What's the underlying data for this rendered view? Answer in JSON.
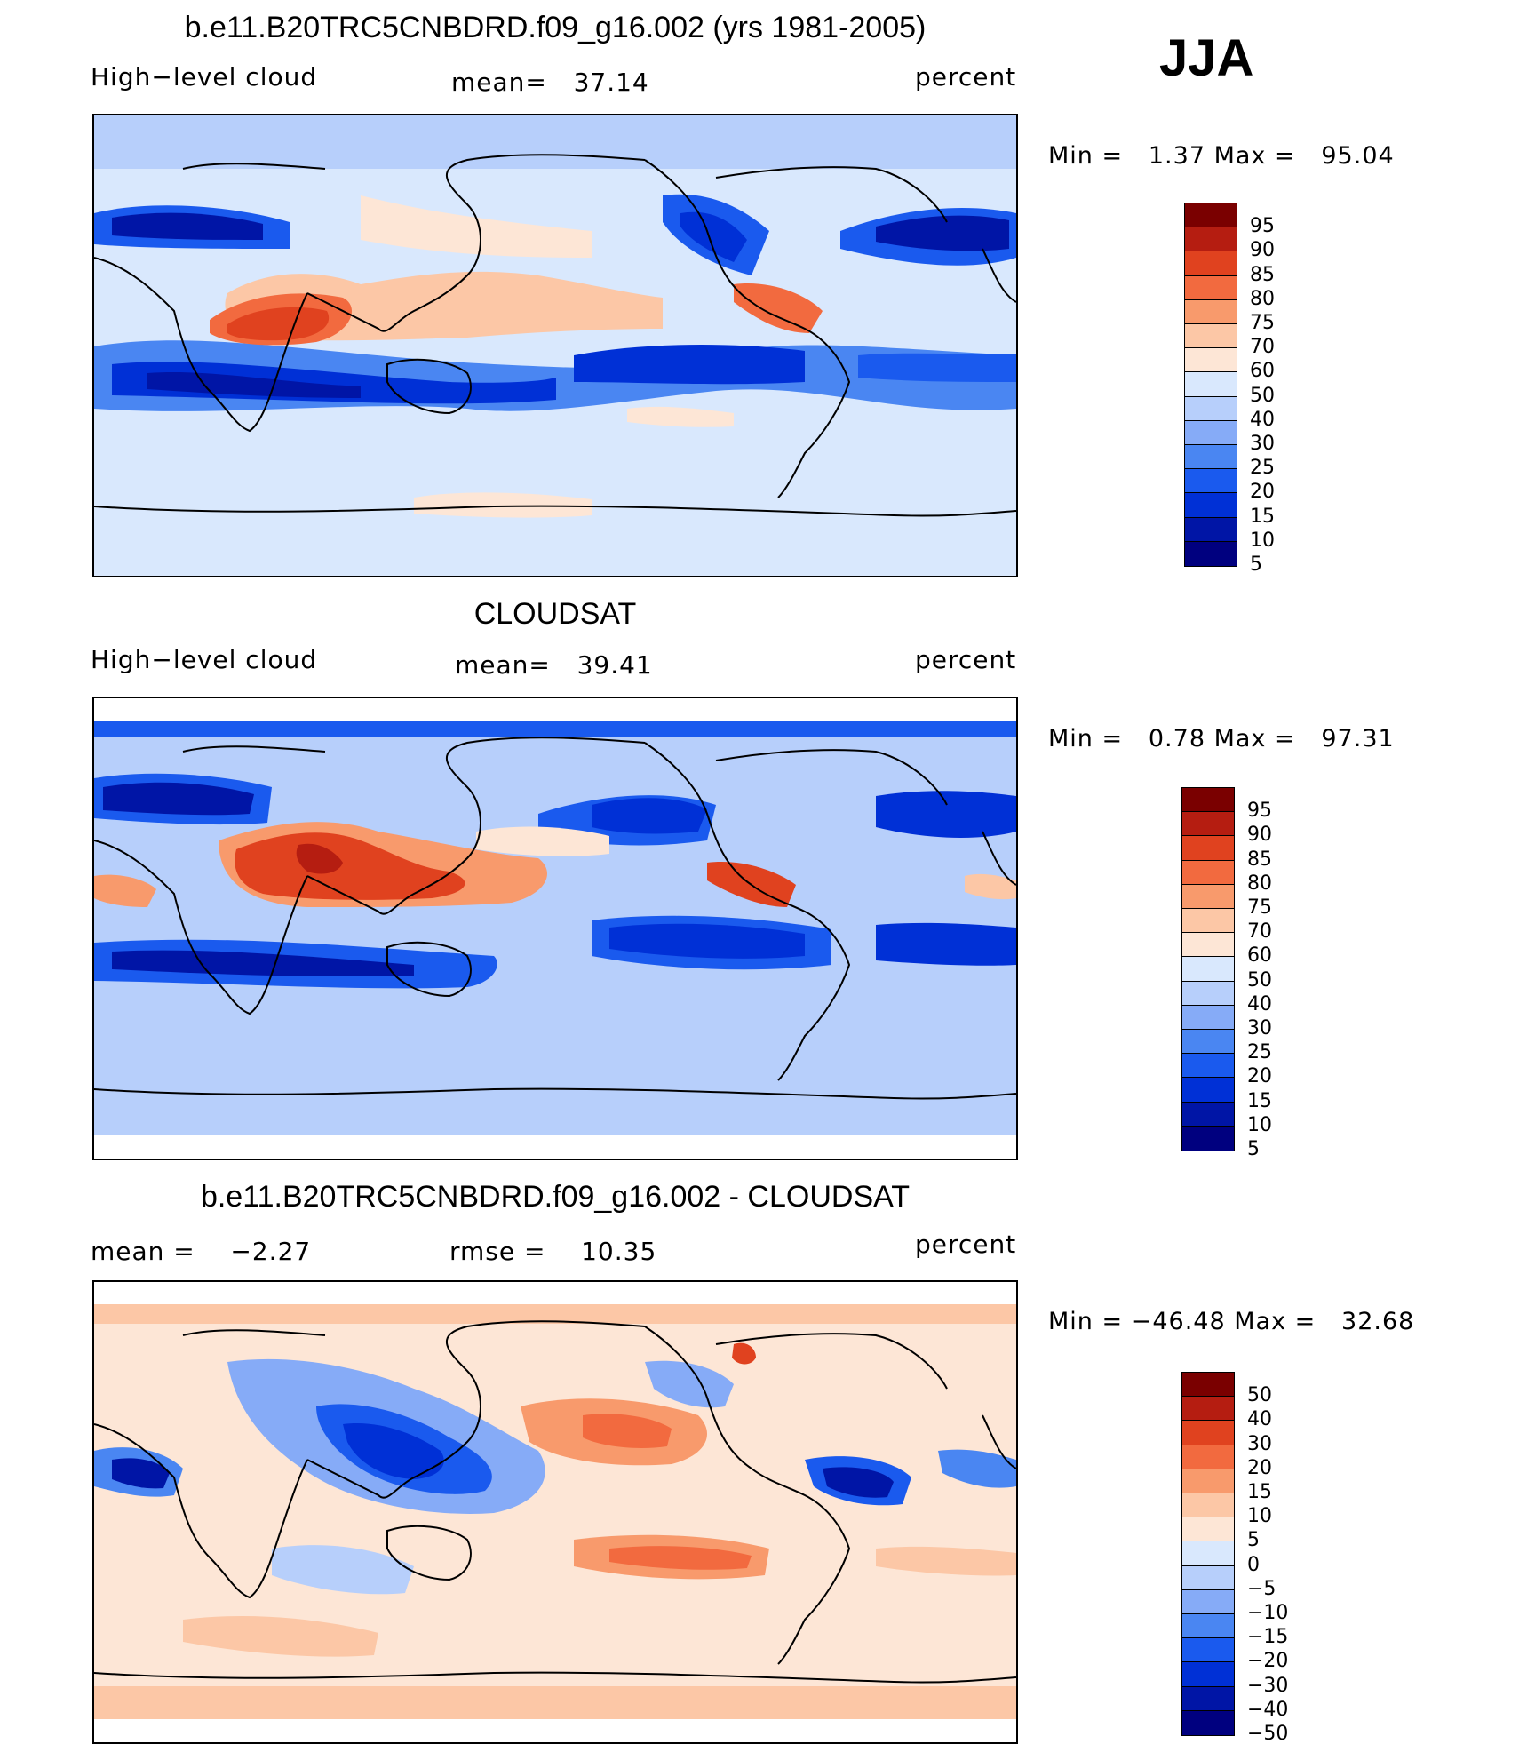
{
  "season": "JJA",
  "colors": {
    "abs_scale": [
      "#00007f",
      "#0015a6",
      "#0030d6",
      "#1a5aee",
      "#4a86f2",
      "#86abf7",
      "#b7cffb",
      "#d9e8fd",
      "#fde6d6",
      "#fcc7a6",
      "#f89a6c",
      "#f26a3f",
      "#e0421f",
      "#b51d11",
      "#7a0000"
    ],
    "diff_scale": [
      "#00007f",
      "#0015a6",
      "#0030d6",
      "#1a5aee",
      "#4a86f2",
      "#86abf7",
      "#b7cffb",
      "#d9e8fd",
      "#fde6d6",
      "#fcc7a6",
      "#f89a6c",
      "#f26a3f",
      "#e0421f",
      "#b51d11",
      "#7a0000"
    ]
  },
  "panels": [
    {
      "title": "b.e11.B20TRC5CNBDRD.f09_g16.002 (yrs 1981-2005)",
      "left_label": "High−level cloud",
      "mid_label": "mean=",
      "mid_value": "37.14",
      "right_label": "percent",
      "min_label": "Min =",
      "min_value": "1.37",
      "max_label": "Max =",
      "max_value": "95.04",
      "legend": [
        "95",
        "90",
        "85",
        "80",
        "75",
        "70",
        "60",
        "50",
        "40",
        "30",
        "25",
        "20",
        "15",
        "10",
        "5"
      ]
    },
    {
      "title": "CLOUDSAT",
      "left_label": "High−level cloud",
      "mid_label": "mean=",
      "mid_value": "39.41",
      "right_label": "percent",
      "min_label": "Min =",
      "min_value": "0.78",
      "max_label": "Max =",
      "max_value": "97.31",
      "legend": [
        "95",
        "90",
        "85",
        "80",
        "75",
        "70",
        "60",
        "50",
        "40",
        "30",
        "25",
        "20",
        "15",
        "10",
        "5"
      ]
    },
    {
      "title": "b.e11.B20TRC5CNBDRD.f09_g16.002 - CLOUDSAT",
      "left_label": "mean =",
      "left_value": "−2.27",
      "mid_label": "rmse =",
      "mid_value": "10.35",
      "right_label": "percent",
      "min_label": "Min =",
      "min_value": "−46.48",
      "max_label": "Max =",
      "max_value": "32.68",
      "legend": [
        "50",
        "40",
        "30",
        "20",
        "15",
        "10",
        "5",
        "0",
        "−5",
        "−10",
        "−15",
        "−20",
        "−30",
        "−40",
        "−50"
      ]
    }
  ]
}
